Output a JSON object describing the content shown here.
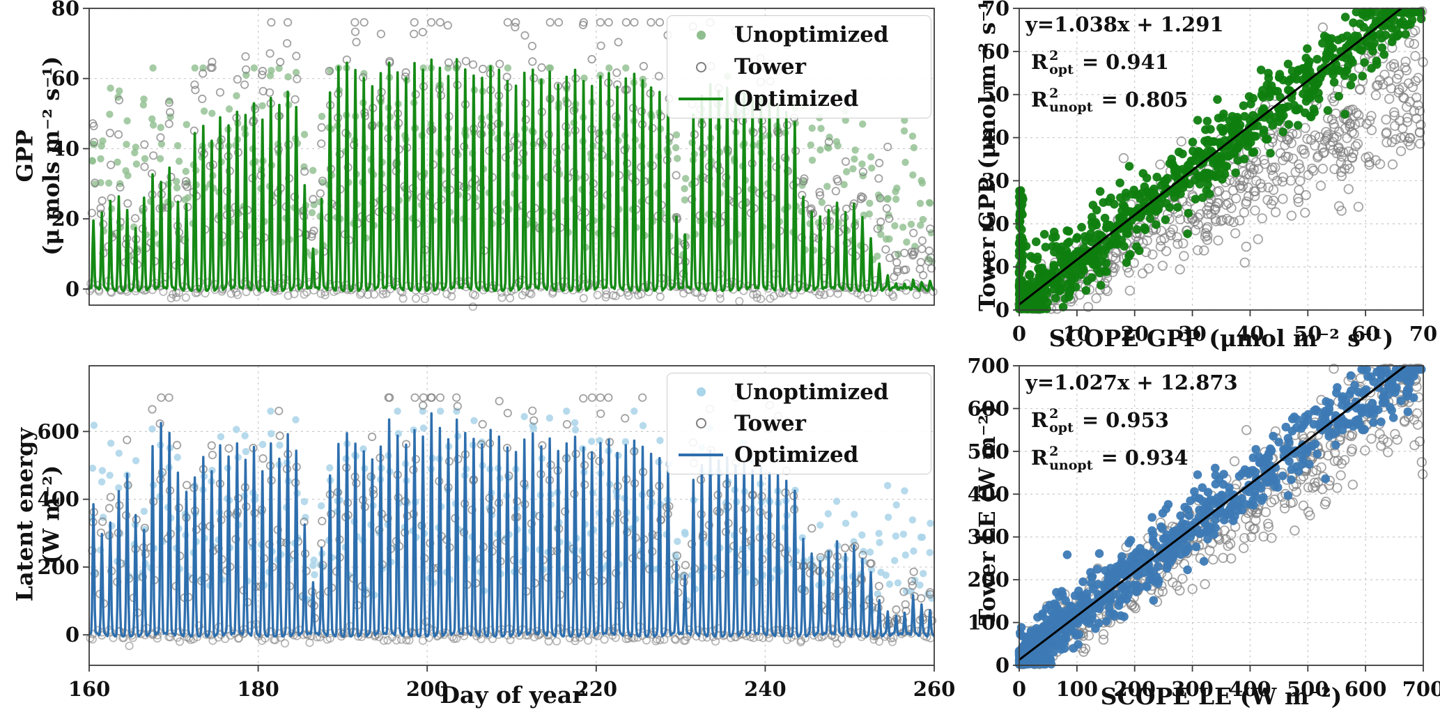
{
  "colors": {
    "green_line": "#158a15",
    "green_scatter": "#0f7e0f",
    "green_light": "#8fbe8f",
    "blue_line": "#2e6fae",
    "blue_scatter": "#3d7ab5",
    "blue_light": "#a9d4e9",
    "tower": "#7d7d7d",
    "grid": "#c9c9c9",
    "spine": "#3a3a3a",
    "fit_line": "#000000",
    "text": "#111111"
  },
  "chart_data": [
    {
      "id": "gpp_timeseries",
      "type": "line+scatter",
      "ylabel": [
        "GPP",
        "(μ mols m⁻² s⁻¹)"
      ],
      "xlabel": "",
      "xlim": [
        160,
        260
      ],
      "ylim": [
        -4.6,
        80
      ],
      "xticks": [
        160,
        180,
        200,
        220,
        240,
        260
      ],
      "yticks": [
        0,
        20,
        40,
        60,
        80
      ],
      "show_xticklabels": false,
      "grid": true,
      "legend": [
        "Unoptimized",
        "Tower",
        "Optimized"
      ],
      "legend_position": "upper right",
      "series": {
        "day_start": 160,
        "optimized_daily_peaks": [
          20,
          22,
          25,
          26,
          22,
          17,
          26,
          33,
          31,
          35,
          25,
          24,
          44,
          46,
          42,
          49,
          47,
          51,
          50,
          53,
          48,
          54,
          52,
          56,
          52,
          30,
          12,
          26,
          56,
          63,
          64,
          62,
          60,
          58,
          62,
          65,
          62,
          60,
          64,
          62,
          65,
          63,
          61,
          66,
          63,
          61,
          60,
          63,
          62,
          59,
          58,
          62,
          63,
          60,
          62,
          58,
          60,
          62,
          59,
          58,
          61,
          62,
          58,
          60,
          61,
          59,
          57,
          56,
          54,
          21,
          16,
          50,
          55,
          58,
          56,
          57,
          55,
          56,
          54,
          55,
          53,
          52,
          50,
          47,
          26,
          22,
          21,
          23,
          25,
          22,
          24,
          20,
          14,
          7,
          4,
          2,
          2,
          3,
          2,
          2,
          2
        ],
        "unoptimized_daily_peaks": [
          52,
          55,
          48,
          58,
          50,
          45,
          52,
          56,
          50,
          55,
          48,
          46,
          55,
          58,
          52,
          57,
          55,
          58,
          56,
          59,
          54,
          58,
          56,
          60,
          56,
          42,
          30,
          45,
          58,
          62,
          62,
          60,
          59,
          58,
          61,
          62,
          60,
          59,
          62,
          60,
          62,
          61,
          60,
          63,
          61,
          60,
          59,
          61,
          60,
          58,
          57,
          60,
          61,
          59,
          60,
          57,
          59,
          60,
          58,
          57,
          59,
          60,
          57,
          58,
          59,
          57,
          56,
          55,
          53,
          40,
          35,
          52,
          55,
          57,
          55,
          56,
          54,
          55,
          53,
          54,
          52,
          51,
          50,
          48,
          45,
          48,
          50,
          52,
          55,
          50,
          52,
          45,
          38,
          30,
          25,
          30,
          40,
          45,
          35,
          28,
          25
        ],
        "tower_rule": "scattered open circles ≈ 1.04 × optimized peak + noise; dense near-zero night values"
      }
    },
    {
      "id": "gpp_scatter",
      "type": "scatter",
      "xlabel": "SCOPE GPP (μmol m⁻² s⁻¹)",
      "ylabel": "Tower GPP (μmol m⁻² s⁻¹)",
      "xlim": [
        0,
        70
      ],
      "ylim": [
        0,
        70
      ],
      "xticks": [
        0,
        10,
        20,
        30,
        40,
        50,
        60,
        70
      ],
      "yticks": [
        0,
        10,
        20,
        30,
        40,
        50,
        60,
        70
      ],
      "grid": true,
      "fit": {
        "slope": 1.038,
        "intercept": 1.291
      },
      "annotation": {
        "equation": "y=1.038x + 1.291",
        "r_base": "R",
        "r_sup": "2",
        "opt_sub": "opt",
        "unopt_sub": "unopt",
        "eq_sign": "=",
        "r2_opt": "0.941",
        "r2_unopt": "0.805"
      },
      "points": {
        "n_opt": 900,
        "xpow": 1.35,
        "noise": 4.2,
        "zero_frac": 0.07,
        "zero_w": 0.9,
        "zero_slope": 0,
        "zero_yext": 30,
        "n_unopt": 520,
        "un_xpow": 0.9,
        "un_slope": 0.73,
        "un_int": 1.5,
        "un_noise": 7.5
      }
    },
    {
      "id": "le_timeseries",
      "type": "line+scatter",
      "ylabel": [
        "Latent energy",
        "(W m⁻²)"
      ],
      "xlabel": "Day of  year",
      "xlim": [
        160,
        260
      ],
      "ylim": [
        -90,
        794
      ],
      "xticks": [
        160,
        180,
        200,
        220,
        240,
        260
      ],
      "yticks": [
        0,
        200,
        400,
        600
      ],
      "show_xticklabels": true,
      "grid": true,
      "legend": [
        "Unoptimized",
        "Tower",
        "Optimized"
      ],
      "legend_position": "upper right",
      "series": {
        "day_start": 160,
        "optimized_daily_peaks": [
          390,
          300,
          330,
          420,
          470,
          350,
          310,
          560,
          630,
          600,
          480,
          420,
          460,
          520,
          480,
          560,
          530,
          570,
          520,
          555,
          480,
          560,
          515,
          590,
          545,
          330,
          160,
          260,
          470,
          560,
          590,
          560,
          540,
          520,
          560,
          640,
          590,
          560,
          600,
          580,
          650,
          610,
          580,
          640,
          600,
          580,
          560,
          600,
          580,
          550,
          540,
          580,
          600,
          560,
          580,
          540,
          560,
          580,
          550,
          540,
          570,
          580,
          540,
          560,
          570,
          550,
          530,
          520,
          500,
          220,
          180,
          460,
          500,
          540,
          510,
          520,
          500,
          510,
          490,
          500,
          480,
          470,
          450,
          420,
          280,
          240,
          220,
          250,
          280,
          240,
          260,
          220,
          180,
          100,
          70,
          60,
          70,
          120,
          90,
          70,
          60
        ],
        "unoptimized_daily_peaks": [
          600,
          520,
          560,
          500,
          520,
          430,
          420,
          580,
          640,
          610,
          520,
          470,
          480,
          540,
          500,
          570,
          545,
          580,
          535,
          565,
          500,
          570,
          530,
          600,
          555,
          380,
          250,
          320,
          490,
          570,
          595,
          570,
          550,
          535,
          570,
          645,
          595,
          570,
          605,
          585,
          650,
          615,
          585,
          645,
          605,
          585,
          570,
          605,
          585,
          560,
          550,
          585,
          605,
          570,
          585,
          550,
          570,
          585,
          560,
          550,
          575,
          585,
          550,
          570,
          575,
          560,
          540,
          530,
          510,
          300,
          260,
          470,
          510,
          545,
          520,
          530,
          510,
          515,
          500,
          505,
          490,
          480,
          460,
          430,
          350,
          320,
          300,
          320,
          350,
          310,
          330,
          300,
          260,
          350,
          380,
          400,
          380,
          360,
          340,
          300,
          280
        ],
        "tower_rule": "scattered open circles ≈ 1.03 × optimized peak + noise; dense near-zero night values"
      }
    },
    {
      "id": "le_scatter",
      "type": "scatter",
      "xlabel": "SCOPE LE (W m⁻²)",
      "ylabel": "Tower LE (W m⁻²)",
      "xlim": [
        0,
        700
      ],
      "ylim": [
        0,
        700
      ],
      "xticks": [
        0,
        100,
        200,
        300,
        400,
        500,
        600,
        700
      ],
      "yticks": [
        0,
        100,
        200,
        300,
        400,
        500,
        600,
        700
      ],
      "grid": true,
      "fit": {
        "slope": 1.027,
        "intercept": 12.873
      },
      "annotation": {
        "equation": "y=1.027x + 12.873",
        "r_base": "R",
        "r_sup": "2",
        "opt_sub": "opt",
        "unopt_sub": "unopt",
        "eq_sign": "=",
        "r2_opt": "0.953",
        "r2_unopt": "0.934"
      },
      "points": {
        "n_opt": 950,
        "xpow": 1.25,
        "noise": 42,
        "zero_frac": 0.2,
        "zero_w": 130,
        "zero_slope": 1.0,
        "zero_yext": 40,
        "n_unopt": 520,
        "un_xpow": 1.05,
        "un_slope": 0.9,
        "un_int": 18,
        "un_noise": 62
      }
    }
  ]
}
